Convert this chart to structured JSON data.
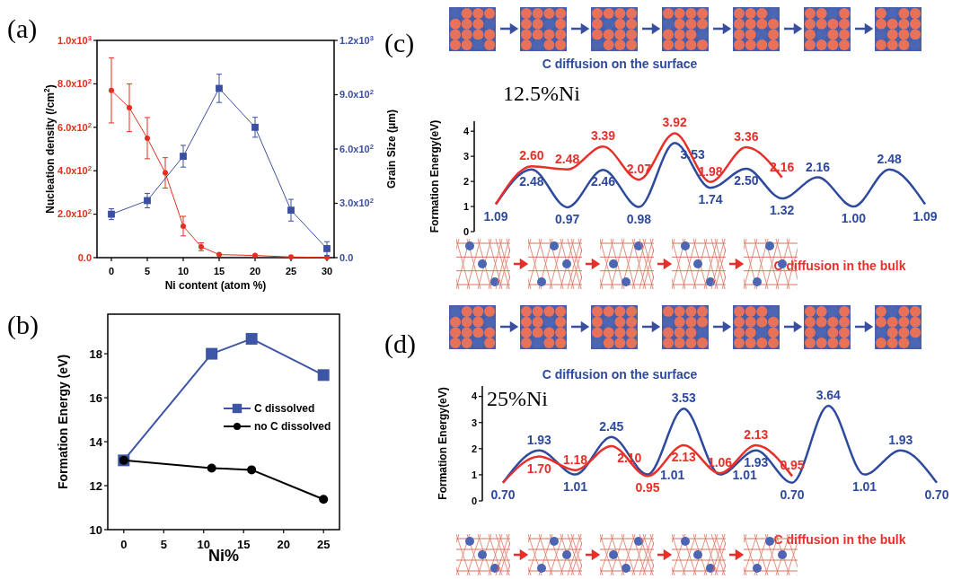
{
  "chart_data": [
    {
      "type": "line",
      "annotations": [
        "(a)"
      ],
      "xlabel": "Ni content (atom %)",
      "ylabel": "Nucleation density (/cm$^{2}$)",
      "y2label": "Grain Size (μm)",
      "xlim": [
        -2,
        31
      ],
      "xticks": [
        0,
        5,
        10,
        15,
        20,
        25,
        30
      ],
      "ylim": [
        0,
        1000
      ],
      "yticks": [
        {
          "value": 0,
          "label": "0.0"
        },
        {
          "value": 200,
          "label": "2.0x10$^{2}$"
        },
        {
          "value": 400,
          "label": "4.0x10$^{2}$"
        },
        {
          "value": 600,
          "label": "6.0x10$^{2}$"
        },
        {
          "value": 800,
          "label": "8.0x10$^{2}$"
        },
        {
          "value": 1000,
          "label": "1.0x10$^{3}$"
        }
      ],
      "y2lim": [
        0,
        1200
      ],
      "y2ticks": [
        {
          "value": 0,
          "label": "0.0"
        },
        {
          "value": 300,
          "label": "3.0x10$^{2}$"
        },
        {
          "value": 600,
          "label": "6.0x10$^{2}$"
        },
        {
          "value": 900,
          "label": "9.0x10$^{2}$"
        },
        {
          "value": 1200,
          "label": "1.2x10$^{3}$"
        }
      ],
      "series": [
        {
          "color": "#e0301e",
          "marker": "circle",
          "x": [
            0,
            2.5,
            5,
            7.5,
            10,
            12.5,
            15,
            20,
            25,
            30
          ],
          "values": [
            770,
            690,
            550,
            390,
            145,
            50,
            14,
            10,
            3,
            1
          ],
          "errors": [
            150,
            110,
            95,
            70,
            45,
            18,
            null,
            null,
            null,
            null
          ]
        },
        {
          "color": "#3a4fa0",
          "marker": "square",
          "axis": "y2",
          "x": [
            0,
            5,
            10,
            15,
            20,
            25,
            30
          ],
          "values": [
            240,
            315,
            560,
            935,
            720,
            262,
            50
          ],
          "errors": [
            30,
            40,
            60,
            78,
            55,
            60,
            38
          ]
        }
      ]
    },
    {
      "type": "line",
      "annotations": [
        "(b)"
      ],
      "xlabel": "Ni%",
      "ylabel": "Formation Energy (eV)",
      "xlim": [
        -2,
        27
      ],
      "xticks": [
        0,
        5,
        10,
        15,
        20,
        25
      ],
      "ylim": [
        10,
        19.8
      ],
      "yticks": [
        10,
        12,
        14,
        16,
        18
      ],
      "legend": "right",
      "series": [
        {
          "name": "C dissolved",
          "color": "#3d55a5",
          "marker": "square",
          "x": [
            0,
            11,
            16,
            25
          ],
          "values": [
            13.15,
            18.0,
            18.68,
            17.03
          ]
        },
        {
          "name": "no C dissolved",
          "color": "#000000",
          "marker": "circle",
          "x": [
            0,
            11,
            16,
            25
          ],
          "values": [
            13.15,
            12.8,
            12.72,
            11.38
          ]
        }
      ]
    },
    {
      "type": "line",
      "title": "12.5%Ni",
      "annotations": [
        "(c)"
      ],
      "ylabel": "Formation Energy(eV)",
      "ylim": [
        0,
        4.4
      ],
      "yticks": [
        0,
        1,
        2,
        3,
        4
      ],
      "tick_labels": "y",
      "categories": [
        null,
        null,
        null,
        null,
        null,
        null,
        null,
        null,
        null,
        null,
        null,
        null,
        null
      ],
      "series": [
        {
          "name": "C diffusion on the surface",
          "color": "#2e4a9e",
          "values": [
            1.09,
            2.48,
            0.97,
            2.46,
            0.98,
            3.53,
            1.74,
            2.5,
            1.32,
            2.16,
            1.0,
            2.48,
            1.09
          ],
          "value_labels": [
            "1.09",
            "2.48",
            "0.97",
            "2.46",
            "0.98",
            "3.53",
            "1.74",
            "2.50",
            "1.32",
            "2.16",
            "1.00",
            "2.48",
            "1.09"
          ]
        },
        {
          "name": "C diffusion in the bulk",
          "color": "#e8302a",
          "values": [
            1.09,
            2.6,
            2.48,
            3.39,
            2.07,
            3.92,
            1.98,
            3.36,
            2.16,
            null,
            null,
            null,
            null
          ],
          "value_labels": [
            null,
            "2.60",
            "2.48",
            "3.39",
            "2.07",
            "3.92",
            "1.98",
            "3.36",
            "2.16",
            null,
            null,
            null,
            null
          ]
        }
      ]
    },
    {
      "type": "line",
      "title": "25%Ni",
      "annotations": [
        "(d)"
      ],
      "ylabel": "Formation Energy(eV)",
      "ylim": [
        0,
        4.4
      ],
      "yticks": [
        0,
        1,
        2,
        3,
        4
      ],
      "tick_labels": "y",
      "categories": [
        null,
        null,
        null,
        null,
        null,
        null,
        null,
        null,
        null,
        null,
        null,
        null,
        null
      ],
      "series": [
        {
          "name": "C diffusion on the surface",
          "color": "#2e4a9e",
          "values": [
            0.7,
            1.93,
            1.01,
            2.45,
            1.01,
            3.53,
            1.01,
            1.93,
            0.7,
            3.64,
            1.01,
            1.93,
            0.7
          ],
          "value_labels": [
            "0.70",
            "1.93",
            "1.01",
            "2.45",
            "1.01",
            "3.53",
            "1.01",
            "1.93",
            "0.70",
            "3.64",
            "1.01",
            "1.93",
            "0.70"
          ]
        },
        {
          "name": "C diffusion in the bulk",
          "color": "#e8302a",
          "values": [
            0.7,
            1.7,
            1.18,
            2.1,
            0.95,
            2.13,
            1.06,
            2.13,
            0.95,
            null,
            null,
            null,
            null
          ],
          "value_labels": [
            null,
            "1.70",
            "1.18",
            "2.10",
            "0.95",
            "2.13",
            "1.06",
            "2.13",
            "0.95",
            null,
            null,
            null,
            null
          ]
        }
      ]
    }
  ]
}
